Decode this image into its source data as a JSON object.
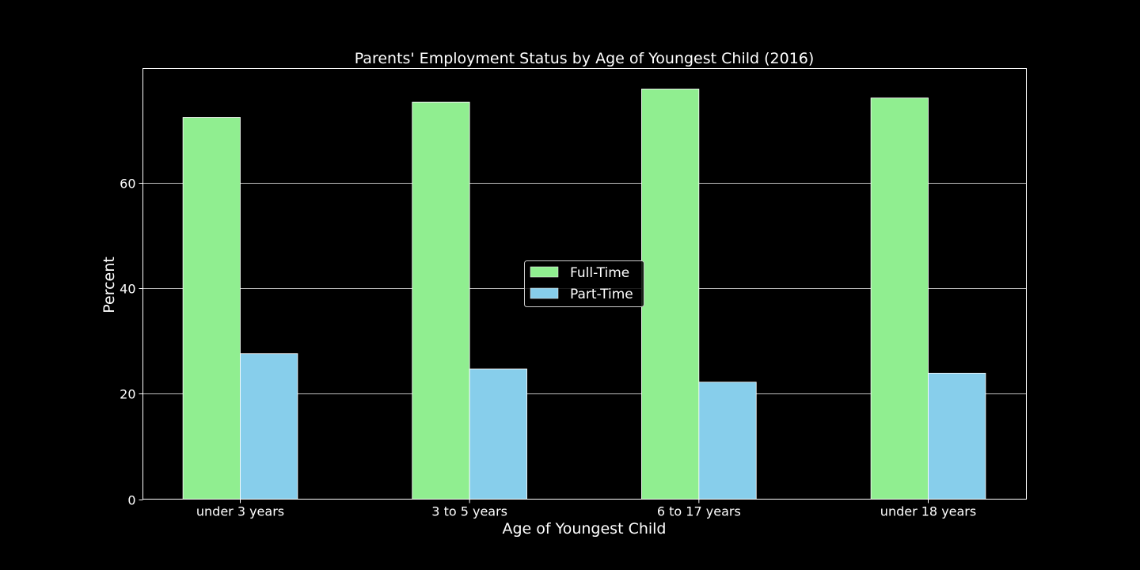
{
  "chart_data": {
    "type": "bar",
    "title": "Parents' Employment Status by Age of Youngest Child (2016)",
    "xlabel": "Age of Youngest Child",
    "ylabel": "Percent",
    "categories": [
      "under 3 years",
      "3 to 5 years",
      "6 to 17 years",
      "under 18 years"
    ],
    "series": [
      {
        "name": "Full-Time",
        "values": [
          72.4,
          75.3,
          77.8,
          76.1
        ]
      },
      {
        "name": "Part-Time",
        "values": [
          27.6,
          24.7,
          22.2,
          23.9
        ]
      }
    ],
    "ylim": [
      0,
      81.7
    ],
    "yticks": [
      0,
      20,
      40,
      60
    ],
    "grid": "horizontal",
    "legend_position": "center",
    "colors": {
      "background": "#000000",
      "text": "#ffffff",
      "grid": "#ffffff",
      "series": [
        "#90ee90",
        "#87ceeb"
      ]
    }
  }
}
